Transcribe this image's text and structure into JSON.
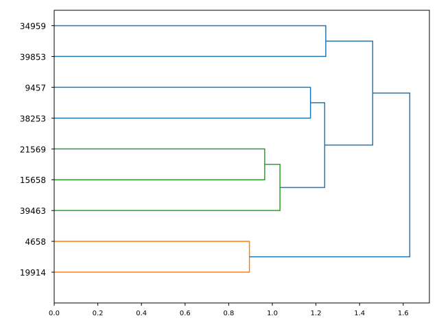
{
  "chart_data": {
    "type": "dendrogram",
    "orientation": "left",
    "x_ticks": [
      "0.0",
      "0.2",
      "0.4",
      "0.6",
      "0.8",
      "1.0",
      "1.2",
      "1.4",
      "1.6"
    ],
    "xlim": [
      0,
      1.72
    ],
    "leaves": [
      "34959",
      "39853",
      "9457",
      "38253",
      "21569",
      "15658",
      "39463",
      "4658",
      "19914"
    ],
    "links": [
      {
        "a": "21569",
        "b": "15658",
        "height": 0.965,
        "color": "#2ca02c"
      },
      {
        "a": "21569+15658",
        "b": "39463",
        "height": 1.035,
        "color": "#2ca02c"
      },
      {
        "a": "4658",
        "b": "19914",
        "height": 0.895,
        "color": "#ff7f0e"
      },
      {
        "a": "9457",
        "b": "38253",
        "height": 1.175,
        "color": "#1f77b4"
      },
      {
        "a": "34959",
        "b": "39853",
        "height": 1.245,
        "color": "#1f77b4"
      },
      {
        "a": "9457+38253",
        "b": "21569+15658+39463",
        "height": 1.24,
        "color": "#1f77b4"
      },
      {
        "a": "34959+39853",
        "b": "9457+38253+21569+15658+39463",
        "height": 1.46,
        "color": "#1f77b4"
      },
      {
        "a": "34959+39853+9457+38253+21569+15658+39463",
        "b": "4658+19914",
        "height": 1.63,
        "color": "#1f77b4"
      }
    ]
  }
}
